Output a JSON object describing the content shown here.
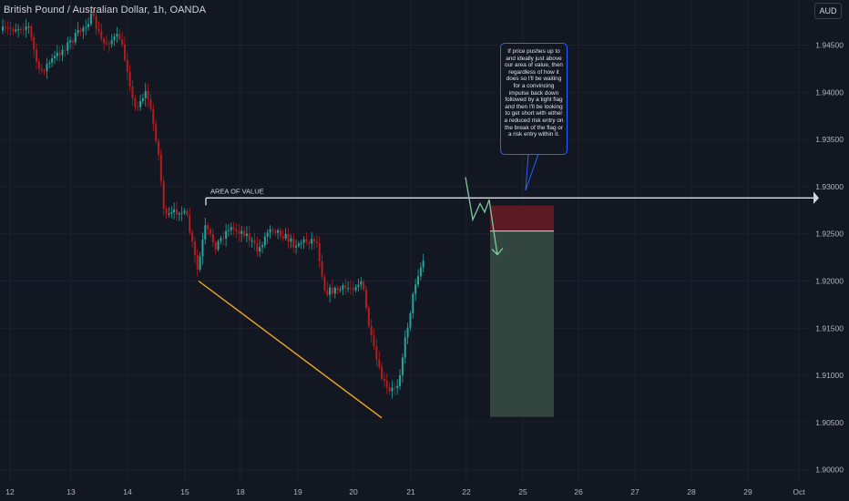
{
  "symbol_title": "British Pound / Australian Dollar, 1h, OANDA",
  "currency_button": "AUD",
  "annotation_text": "If price pushes up to and ideally just above our area of value, then regardless of how it does so I'll be waiting for a convincing impulse back down followed by a tight flag and then I'll be looking to get short with either a reduced risk entry on the break of the flag or a risk entry within it.",
  "level_label": "AREA OF VALUE",
  "colors": {
    "bull": "#26a69a",
    "bear": "#b71c1c",
    "level": "#e0e3eb",
    "trendline": "#f5a623",
    "stop_zone": "#5c1a23",
    "target_zone": "#32463f",
    "path": "#7ec8a0",
    "callout_border": "#2962ff"
  },
  "chart_data": {
    "type": "candlestick",
    "title": "British Pound / Australian Dollar, 1h, OANDA",
    "y_axis": {
      "ticks": [
        "1.94500",
        "1.94000",
        "1.93500",
        "1.93000",
        "1.92500",
        "1.92000",
        "1.91500",
        "1.91000",
        "1.90500",
        "1.90000"
      ],
      "range": [
        1.8996,
        1.9513
      ],
      "side": "right"
    },
    "x_axis": {
      "ticks": [
        "12",
        "13",
        "14",
        "15",
        "18",
        "19",
        "20",
        "21",
        "22",
        "25",
        "26",
        "27",
        "28",
        "29",
        "Oct"
      ]
    },
    "area_of_value": 1.9288,
    "trendline": {
      "from": 1.92,
      "to": 1.9055
    },
    "short_setup": {
      "stop_top": 1.928,
      "entry": 1.9253,
      "target": 1.9056
    },
    "price_path": [
      1.931,
      1.9265,
      1.9282,
      1.9273,
      1.9286,
      1.9253,
      1.9228
    ]
  }
}
